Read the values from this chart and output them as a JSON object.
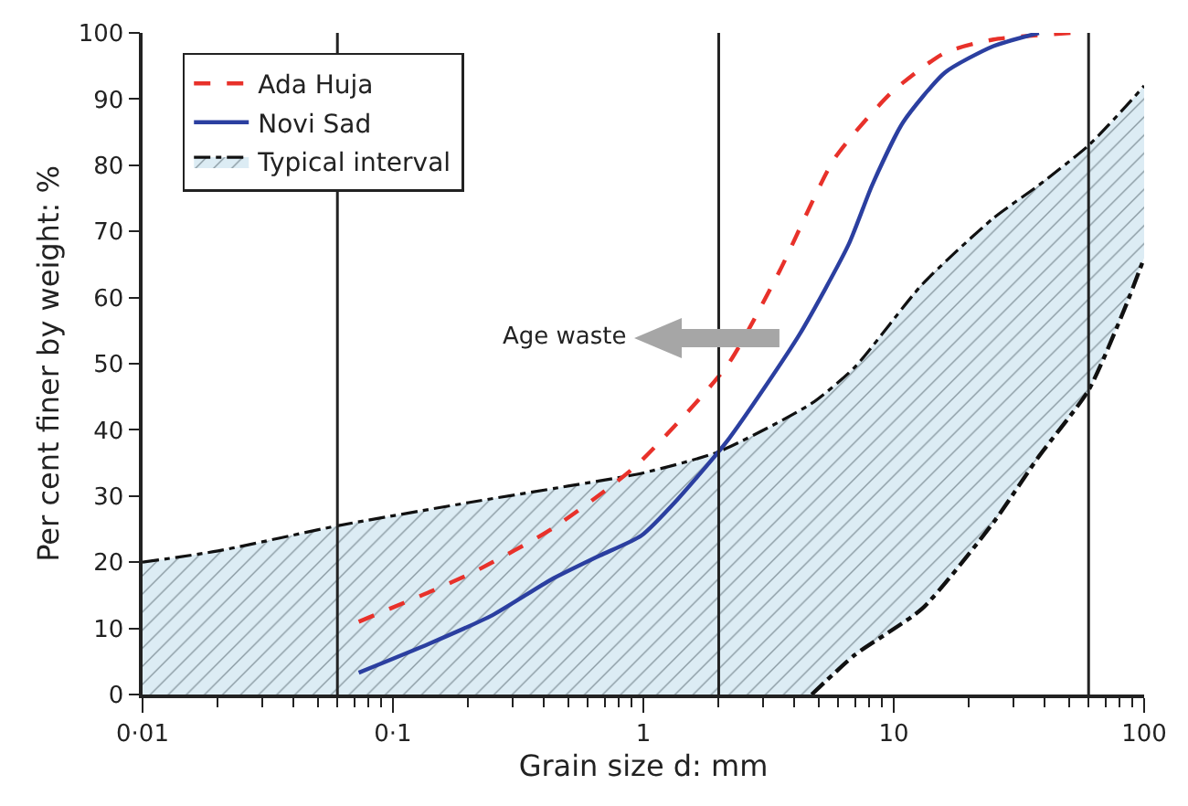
{
  "chart_data": {
    "type": "line",
    "xlabel": "Grain size d: mm",
    "ylabel": "Per cent finer by weight: %",
    "log": "x",
    "xlim": [
      0.01,
      100
    ],
    "xticks": [
      {
        "value": 0.01,
        "label": "0·01"
      },
      {
        "value": 0.1,
        "label": "0·1"
      },
      1,
      10,
      100
    ],
    "ylim": [
      0,
      100
    ],
    "yticks": [
      0,
      10,
      20,
      30,
      40,
      50,
      60,
      70,
      80,
      90,
      100
    ],
    "grid": false,
    "legend": "top left",
    "marker": "none",
    "series": [
      {
        "name": "Ada Huja",
        "color": "#e8312a",
        "line_style": "dashed",
        "x": [
          0.073,
          0.14,
          0.21,
          0.43,
          0.93,
          2.16,
          3.5,
          5.8,
          9.8,
          16,
          25,
          51
        ],
        "values": [
          11,
          15.5,
          18.5,
          25,
          34.5,
          49.7,
          64,
          81,
          91,
          97,
          99,
          100
        ]
      },
      {
        "name": "Novi Sad",
        "color": "#2b3fa0",
        "line_style": "solid",
        "x": [
          0.073,
          0.14,
          0.25,
          0.43,
          0.67,
          0.98,
          1.37,
          2.2,
          4.2,
          6.6,
          8.2,
          10.9,
          16,
          25,
          38
        ],
        "values": [
          3.3,
          7.7,
          12,
          17.4,
          21,
          24,
          29.5,
          38.7,
          54.4,
          68,
          77,
          86.5,
          94,
          98,
          100
        ]
      },
      {
        "type": "line",
        "color": "#111111",
        "line_style": "dashdot",
        "x": [
          4.7,
          7,
          13,
          25,
          38,
          60,
          85,
          100
        ],
        "values": [
          0,
          6,
          13,
          26,
          36,
          46,
          59,
          66
        ]
      },
      {
        "name": "Typical interval",
        "type": "area",
        "color": "#111111",
        "line_style": "dashdot",
        "x": [
          0.01,
          0.02,
          0.06,
          0.2,
          0.5,
          1,
          2,
          4.7,
          7,
          13,
          25,
          38,
          60,
          85,
          100
        ],
        "values": [
          20,
          21.7,
          25.5,
          29,
          31.5,
          33.5,
          36.7,
          44,
          49.5,
          62,
          72,
          77,
          83,
          89,
          92
        ]
      }
    ],
    "ref_lines": [
      {
        "axis": "x",
        "value": 0.06,
        "color": "#222222"
      },
      {
        "axis": "x",
        "value": 2,
        "color": "#222222"
      },
      {
        "axis": "x",
        "value": 60,
        "color": "#222222"
      }
    ],
    "annotations": [
      "Age waste"
    ]
  }
}
